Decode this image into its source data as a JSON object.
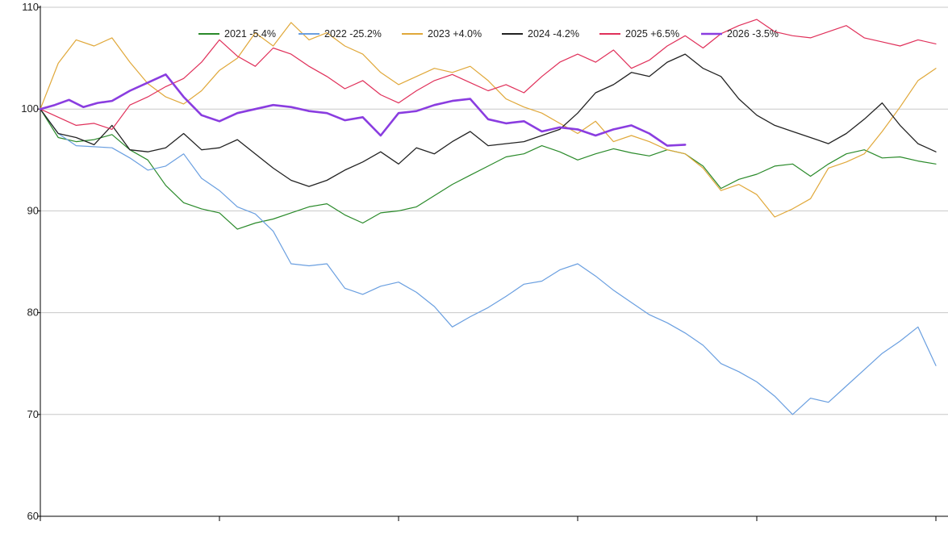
{
  "chart_data": {
    "type": "line",
    "title": "",
    "xlabel": "",
    "ylabel": "",
    "ylim": [
      60,
      110
    ],
    "yticks": [
      60,
      70,
      80,
      90,
      100,
      110
    ],
    "xlim": [
      0,
      250
    ],
    "xticks": [
      0,
      50,
      100,
      150,
      200,
      250
    ],
    "grid": "horizontal",
    "legend_position": "top",
    "series": [
      {
        "name": "2021 -5.4%",
        "color": "#2a8a2a",
        "width": 1.2,
        "x": [
          0,
          5,
          10,
          15,
          20,
          25,
          30,
          35,
          40,
          45,
          50,
          55,
          60,
          65,
          70,
          75,
          80,
          85,
          90,
          95,
          100,
          105,
          110,
          115,
          120,
          125,
          130,
          135,
          140,
          145,
          150,
          155,
          160,
          165,
          170,
          175,
          180,
          185,
          190,
          195,
          200,
          205,
          210,
          215,
          220,
          225,
          230,
          235,
          240,
          245,
          250
        ],
        "values": [
          100,
          97.2,
          96.8,
          97.0,
          97.5,
          96.0,
          95.0,
          92.5,
          90.8,
          90.2,
          89.8,
          88.2,
          88.8,
          89.2,
          89.8,
          90.4,
          90.7,
          89.6,
          88.8,
          89.8,
          90.0,
          90.4,
          91.5,
          92.6,
          93.5,
          94.4,
          95.3,
          95.6,
          96.4,
          95.8,
          95.0,
          95.6,
          96.1,
          95.7,
          95.4,
          96.0,
          95.6,
          94.4,
          92.2,
          93.1,
          93.6,
          94.4,
          94.6,
          93.4,
          94.6,
          95.6,
          96.0,
          95.2,
          95.3,
          94.9,
          94.6
        ]
      },
      {
        "name": "2022 -25.2%",
        "color": "#6a9fe0",
        "width": 1.2,
        "x": [
          0,
          5,
          10,
          15,
          20,
          25,
          30,
          35,
          40,
          45,
          50,
          55,
          60,
          65,
          70,
          75,
          80,
          85,
          90,
          95,
          100,
          105,
          110,
          115,
          120,
          125,
          130,
          135,
          140,
          145,
          150,
          155,
          160,
          165,
          170,
          175,
          180,
          185,
          190,
          195,
          200,
          205,
          210,
          215,
          220,
          225,
          230,
          235,
          240,
          245,
          250
        ],
        "values": [
          100,
          97.6,
          96.4,
          96.3,
          96.2,
          95.2,
          94.0,
          94.4,
          95.6,
          93.2,
          92.0,
          90.4,
          89.7,
          88.0,
          84.8,
          84.6,
          84.8,
          82.4,
          81.8,
          82.6,
          83.0,
          82.0,
          80.6,
          78.6,
          79.6,
          80.5,
          81.6,
          82.8,
          83.1,
          84.2,
          84.8,
          83.6,
          82.2,
          81.0,
          79.8,
          79.0,
          78.0,
          76.8,
          75.0,
          74.2,
          73.2,
          71.8,
          70.0,
          71.6,
          71.2,
          72.8,
          74.4,
          76.0,
          77.2,
          78.6,
          74.8
        ]
      },
      {
        "name": "2023 +4.0%",
        "color": "#e0a83a",
        "width": 1.2,
        "x": [
          0,
          5,
          10,
          15,
          20,
          25,
          30,
          35,
          40,
          45,
          50,
          55,
          60,
          65,
          70,
          75,
          80,
          85,
          90,
          95,
          100,
          105,
          110,
          115,
          120,
          125,
          130,
          135,
          140,
          145,
          150,
          155,
          160,
          165,
          170,
          175,
          180,
          185,
          190,
          195,
          200,
          205,
          210,
          215,
          220,
          225,
          230,
          235,
          240,
          245,
          250
        ],
        "values": [
          100,
          104.5,
          106.8,
          106.2,
          107.0,
          104.6,
          102.5,
          101.2,
          100.5,
          101.8,
          103.8,
          105.0,
          107.5,
          106.2,
          108.5,
          106.8,
          107.5,
          106.2,
          105.4,
          103.6,
          102.4,
          103.2,
          104.0,
          103.6,
          104.2,
          102.8,
          101.0,
          100.2,
          99.6,
          98.6,
          97.6,
          98.8,
          96.8,
          97.4,
          96.8,
          96.0,
          95.6,
          94.2,
          92.0,
          92.6,
          91.6,
          89.4,
          90.2,
          91.2,
          94.2,
          94.8,
          95.6,
          97.8,
          100.2,
          102.8,
          104.0
        ]
      },
      {
        "name": "2024 -4.2%",
        "color": "#222222",
        "width": 1.3,
        "x": [
          0,
          5,
          10,
          15,
          20,
          25,
          30,
          35,
          40,
          45,
          50,
          55,
          60,
          65,
          70,
          75,
          80,
          85,
          90,
          95,
          100,
          105,
          110,
          115,
          120,
          125,
          130,
          135,
          140,
          145,
          150,
          155,
          160,
          165,
          170,
          175,
          180,
          185,
          190,
          195,
          200,
          205,
          210,
          215,
          220,
          225,
          230,
          235,
          240,
          245,
          250
        ],
        "values": [
          100,
          97.6,
          97.2,
          96.5,
          98.4,
          96.0,
          95.8,
          96.2,
          97.6,
          96.0,
          96.2,
          97.0,
          95.6,
          94.2,
          93.0,
          92.4,
          93.0,
          94.0,
          94.8,
          95.8,
          94.6,
          96.2,
          95.6,
          96.8,
          97.8,
          96.4,
          96.6,
          96.8,
          97.4,
          98.0,
          99.6,
          101.6,
          102.4,
          103.6,
          103.2,
          104.6,
          105.4,
          104.0,
          103.2,
          101.0,
          99.4,
          98.4,
          97.8,
          97.2,
          96.6,
          97.6,
          99.0,
          100.6,
          98.4,
          96.6,
          95.8
        ]
      },
      {
        "name": "2025 +6.5%",
        "color": "#e0305a",
        "width": 1.2,
        "x": [
          0,
          5,
          10,
          15,
          20,
          25,
          30,
          35,
          40,
          45,
          50,
          55,
          60,
          65,
          70,
          75,
          80,
          85,
          90,
          95,
          100,
          105,
          110,
          115,
          120,
          125,
          130,
          135,
          140,
          145,
          150,
          155,
          160,
          165,
          170,
          175,
          180,
          185,
          190,
          195,
          200,
          205,
          210,
          215,
          220,
          225,
          230,
          235,
          240,
          245,
          250
        ],
        "values": [
          100,
          99.2,
          98.4,
          98.6,
          98.0,
          100.4,
          101.2,
          102.2,
          103.0,
          104.6,
          106.8,
          105.2,
          104.2,
          106.0,
          105.4,
          104.2,
          103.2,
          102.0,
          102.8,
          101.4,
          100.6,
          101.8,
          102.8,
          103.4,
          102.6,
          101.8,
          102.4,
          101.6,
          103.2,
          104.6,
          105.4,
          104.6,
          105.8,
          104.0,
          104.8,
          106.2,
          107.2,
          106.0,
          107.4,
          108.2,
          108.8,
          107.6,
          107.2,
          107.0,
          107.6,
          108.2,
          107.0,
          106.6,
          106.2,
          106.8,
          106.4
        ]
      },
      {
        "name": "2026 -3.5%",
        "color": "#8a3de0",
        "width": 2.6,
        "x": [
          0,
          4,
          8,
          12,
          16,
          20,
          25,
          30,
          35,
          40,
          45,
          50,
          55,
          60,
          65,
          70,
          75,
          80,
          85,
          90,
          95,
          100,
          105,
          110,
          115,
          120,
          125,
          130,
          135,
          140,
          145,
          150,
          155,
          160,
          165,
          170,
          175,
          180
        ],
        "values": [
          100,
          100.4,
          100.9,
          100.2,
          100.6,
          100.8,
          101.8,
          102.6,
          103.4,
          101.2,
          99.4,
          98.8,
          99.6,
          100.0,
          100.4,
          100.2,
          99.8,
          99.6,
          98.9,
          99.2,
          97.4,
          99.6,
          99.8,
          100.4,
          100.8,
          101.0,
          99.0,
          98.6,
          98.8,
          97.8,
          98.2,
          98.0,
          97.4,
          98.0,
          98.4,
          97.6,
          96.4,
          96.5
        ]
      }
    ]
  }
}
